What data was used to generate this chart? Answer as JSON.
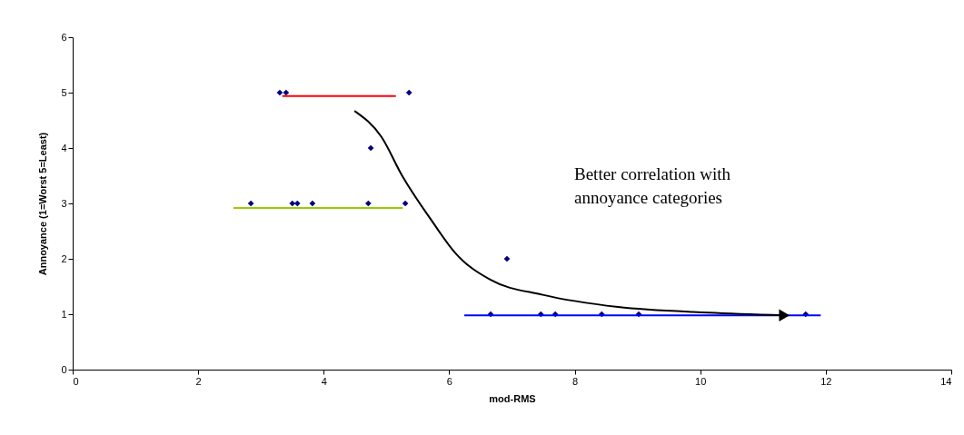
{
  "chart_data": {
    "type": "scatter",
    "xlabel": "mod-RMS",
    "ylabel": "Annoyance (1=Worst 5=Least)",
    "xlim": [
      0,
      14
    ],
    "xticks": [
      0,
      2,
      4,
      6,
      8,
      10,
      12,
      14
    ],
    "ylim": [
      0,
      6
    ],
    "yticks": [
      0,
      1,
      2,
      3,
      4,
      5,
      6
    ],
    "grid": false,
    "annotations": [
      "Better correlation with annoyance categories"
    ],
    "series": [
      {
        "marker": "diamond",
        "color": "#000080",
        "x": [
          3.3,
          3.4,
          5.36,
          4.75,
          2.84,
          3.5,
          3.58,
          3.82,
          4.71,
          5.3,
          6.92,
          6.66,
          7.46,
          7.69,
          8.43,
          9.02,
          11.68
        ],
        "values": [
          5,
          5,
          5,
          4,
          3,
          3,
          3,
          3,
          3,
          3,
          2,
          1,
          1,
          1,
          1,
          1,
          1
        ]
      },
      {
        "type": "line",
        "color": "#ff0000",
        "x": [
          3.34,
          5.15
        ],
        "values": [
          4.94,
          4.94
        ]
      },
      {
        "type": "line",
        "color": "#99cc00",
        "x": [
          2.56,
          5.26
        ],
        "values": [
          2.92,
          2.92
        ]
      },
      {
        "type": "line",
        "color": "#0000ff",
        "x": [
          6.24,
          11.92
        ],
        "values": [
          0.98,
          0.98
        ]
      },
      {
        "type": "line",
        "color": "#000000",
        "x": [
          4.49,
          4.92,
          5.25,
          5.72,
          6.1,
          6.66,
          7.49,
          8.69,
          10.13,
          11.34
        ],
        "values": [
          4.67,
          4.2,
          3.5,
          2.69,
          2.1,
          1.62,
          1.35,
          1.13,
          1.03,
          0.98
        ]
      }
    ]
  }
}
